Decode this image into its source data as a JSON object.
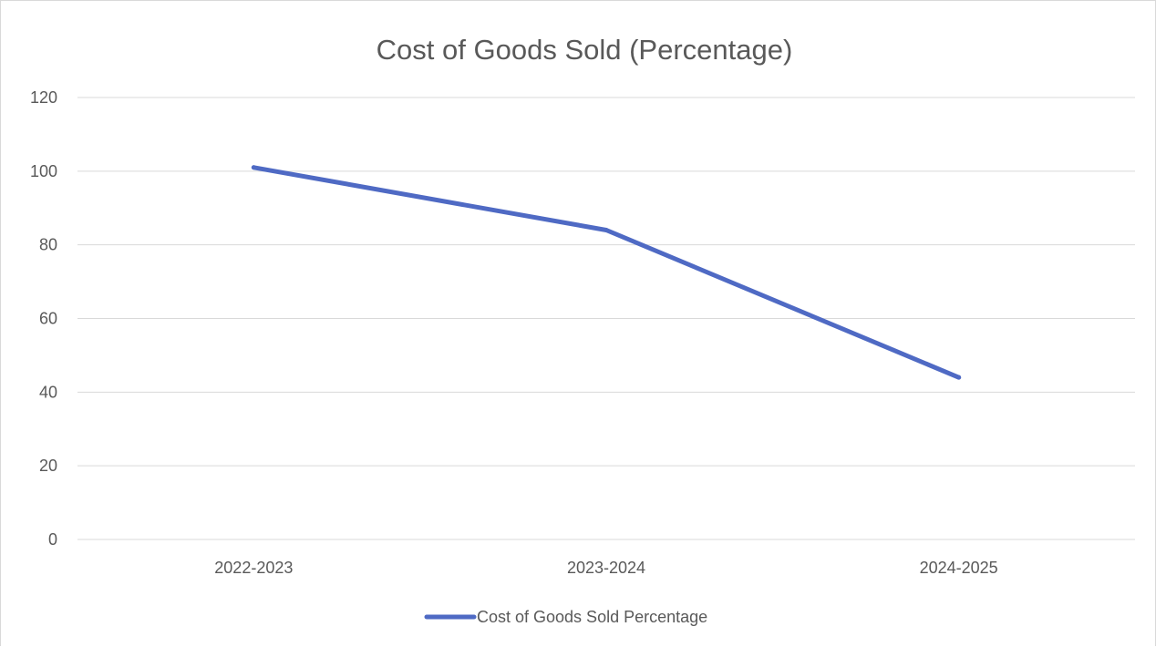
{
  "chart_data": {
    "type": "line",
    "title": "Cost of Goods Sold (Percentage)",
    "xlabel": "",
    "ylabel": "",
    "categories": [
      "2022-2023",
      "2023-2024",
      "2024-2025"
    ],
    "series": [
      {
        "name": "Cost of Goods Sold Percentage",
        "values": [
          101,
          84,
          44
        ],
        "color": "#4f6ac4"
      }
    ],
    "ylim": [
      0,
      120
    ],
    "yticks": [
      "0",
      "20",
      "40",
      "60",
      "80",
      "100",
      "120"
    ],
    "grid": true,
    "legend": "bottom"
  }
}
